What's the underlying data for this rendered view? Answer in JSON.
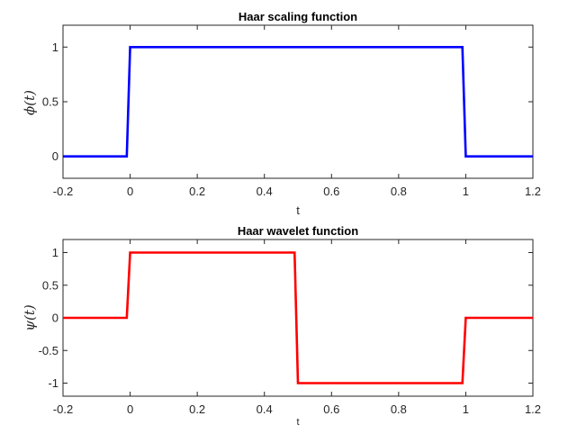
{
  "chart_data": [
    {
      "type": "line",
      "title": "Haar scaling function",
      "xlabel": "t",
      "ylabel": "ϕ(t)",
      "xlim": [
        -0.2,
        1.2
      ],
      "ylim": [
        -0.2,
        1.2
      ],
      "xticks": [
        "-0.2",
        "0",
        "0.2",
        "0.4",
        "0.6",
        "0.8",
        "1",
        "1.2"
      ],
      "yticks": [
        "0",
        "0.5",
        "1"
      ],
      "grid": false,
      "series": [
        {
          "color": "#0000ff",
          "x": [
            -0.2,
            -0.01,
            0.0,
            0.99,
            1.0,
            1.2
          ],
          "y": [
            0,
            0,
            1,
            1,
            0,
            0
          ]
        }
      ]
    },
    {
      "type": "line",
      "title": "Haar wavelet function",
      "xlabel": "t",
      "ylabel": "ψ(t)",
      "xlim": [
        -0.2,
        1.2
      ],
      "ylim": [
        -1.2,
        1.2
      ],
      "xticks": [
        "-0.2",
        "0",
        "0.2",
        "0.4",
        "0.6",
        "0.8",
        "1",
        "1.2"
      ],
      "yticks": [
        "-1",
        "-0.5",
        "0",
        "0.5",
        "1"
      ],
      "grid": false,
      "series": [
        {
          "color": "#ff0000",
          "x": [
            -0.2,
            -0.01,
            0.0,
            0.49,
            0.5,
            0.99,
            1.0,
            1.2
          ],
          "y": [
            0,
            0,
            1,
            1,
            -1,
            -1,
            0,
            0
          ]
        }
      ]
    }
  ]
}
